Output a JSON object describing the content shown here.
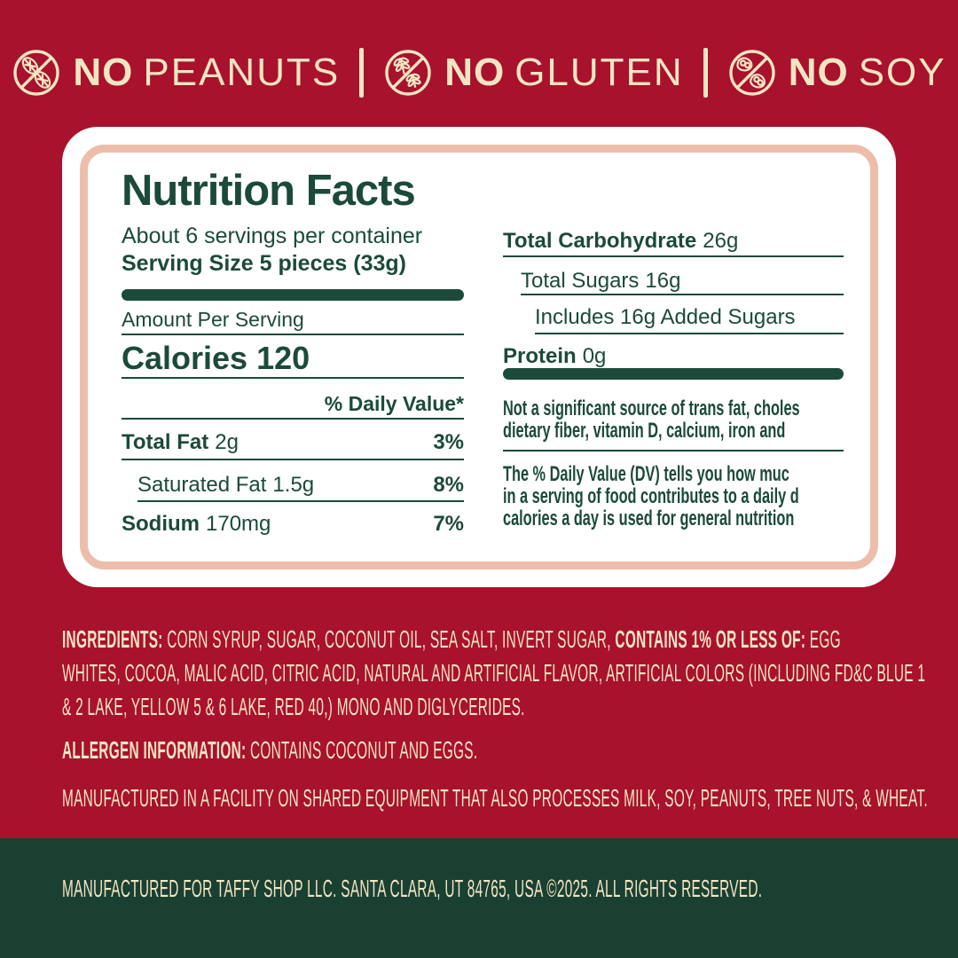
{
  "colors": {
    "background_red": "#A8122D",
    "cream": "#F3E5C3",
    "panel_green": "#1C4A3A",
    "footer_green": "#1A4032",
    "pink_border": "#EDBDAC",
    "panel_white": "#FFFFFF"
  },
  "allergen_badges": {
    "separator": "|",
    "items": [
      {
        "icon": "no-peanuts-icon",
        "no": "NO",
        "rest": "PEANUTS"
      },
      {
        "icon": "no-gluten-icon",
        "no": "NO",
        "rest": "GLUTEN"
      },
      {
        "icon": "no-soy-icon",
        "no": "NO",
        "rest": "SOY"
      }
    ]
  },
  "nutrition_panel": {
    "title": "Nutrition Facts",
    "servings_per_container": "About 6 servings per container",
    "serving_size": "Serving Size 5 pieces (33g)",
    "amount_per_serving": "Amount Per Serving",
    "calories_label": "Calories",
    "calories_value": "120",
    "daily_value_header": "% Daily Value*",
    "left_rows": [
      {
        "label": "Total Fat",
        "value": "2g",
        "dv": "3%"
      },
      {
        "label": "Saturated Fat",
        "value": "1.5g",
        "dv": "8%"
      },
      {
        "label": "Sodium",
        "value": "170mg",
        "dv": "7%"
      }
    ],
    "right_rows": [
      {
        "label": "Total Carbohydrate",
        "value": "26g"
      },
      {
        "label": "Total Sugars",
        "value": "16g"
      },
      {
        "label": "Includes 16g Added Sugars",
        "value": ""
      },
      {
        "label": "Protein",
        "value": "0g"
      }
    ],
    "footnote_significance": "Not a significant source of trans fat, choles\ndietary fiber, vitamin D, calcium, iron and",
    "footnote_daily_value": "The % Daily Value (DV) tells you how muc\nin a serving of food contributes to a daily d\ncalories a day is used for general nutrition"
  },
  "ingredients": {
    "segments": [
      {
        "bold": true,
        "text": "INGREDIENTS: "
      },
      {
        "bold": false,
        "text": "CORN SYRUP, SUGAR, COCONUT OIL, SEA SALT, INVERT SUGAR, "
      },
      {
        "bold": true,
        "text": "CONTAINS 1% OR LESS OF: "
      },
      {
        "bold": false,
        "text": "EGG\nWHITES, COCOA, MALIC ACID, CITRIC ACID, NATURAL AND ARTIFICIAL FLAVOR, ARTIFICIAL COLORS (INCLUDING FD&C BLUE 1\n& 2 LAKE, YELLOW 5 & 6 LAKE, RED 40,) MONO AND DIGLYCERIDES."
      }
    ]
  },
  "allergen_info": {
    "segments": [
      {
        "bold": true,
        "text": "ALLERGEN INFORMATION: "
      },
      {
        "bold": false,
        "text": "CONTAINS COCONUT AND EGGS."
      }
    ]
  },
  "facility_statement": "MANUFACTURED IN A FACILITY ON SHARED EQUIPMENT THAT ALSO PROCESSES MILK, SOY, PEANUTS, TREE NUTS, & WHEAT.",
  "footer": {
    "text": "MANUFACTURED FOR TAFFY SHOP LLC. SANTA CLARA, UT 84765, USA ©2025. ALL RIGHTS RESERVED."
  }
}
